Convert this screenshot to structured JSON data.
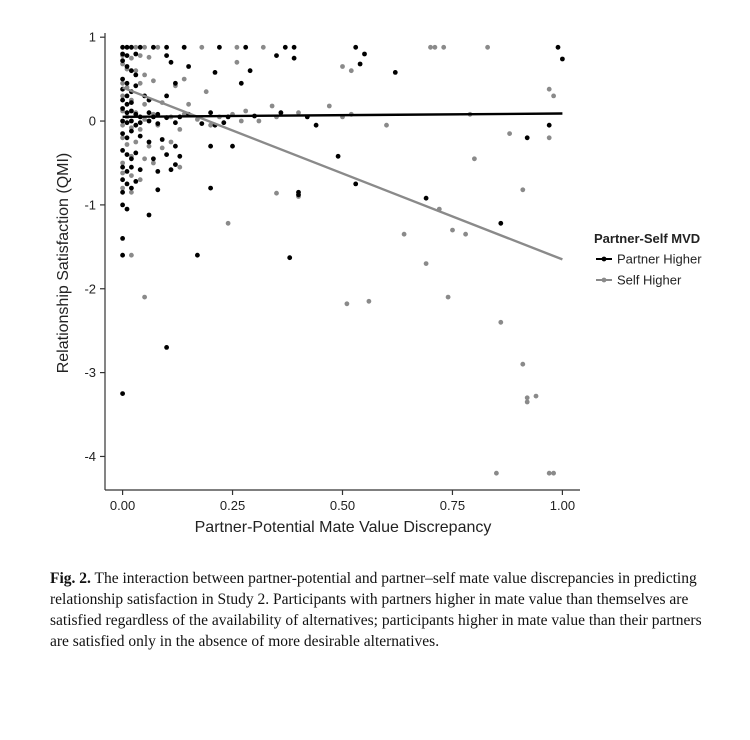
{
  "chart_data": {
    "type": "scatter",
    "xlabel": "Partner-Potential Mate Value Discrepancy",
    "ylabel": "Relationship Satisfaction (QMI)",
    "xlim": [
      -0.04,
      1.04
    ],
    "ylim": [
      -4.4,
      1.05
    ],
    "x_ticks": [
      {
        "value": 0.0,
        "label": "0.00"
      },
      {
        "value": 0.25,
        "label": "0.25"
      },
      {
        "value": 0.5,
        "label": "0.50"
      },
      {
        "value": 0.75,
        "label": "0.75"
      },
      {
        "value": 1.0,
        "label": "1.00"
      }
    ],
    "y_ticks": [
      {
        "value": 1,
        "label": "1"
      },
      {
        "value": 0,
        "label": "0"
      },
      {
        "value": -1,
        "label": "-1"
      },
      {
        "value": -2,
        "label": "-2"
      },
      {
        "value": -3,
        "label": "-3"
      },
      {
        "value": -4,
        "label": "-4"
      }
    ],
    "grid": false,
    "legend": {
      "title": "Partner-Self MVD",
      "placement": "right"
    },
    "series": [
      {
        "name": "Partner Higher",
        "color": "#000000",
        "fit_line": [
          [
            0,
            0.05
          ],
          [
            1,
            0.09
          ]
        ],
        "points": [
          [
            0.0,
            0.88
          ],
          [
            0.01,
            0.88
          ],
          [
            0.02,
            0.88
          ],
          [
            0.04,
            0.88
          ],
          [
            0.07,
            0.88
          ],
          [
            0.1,
            0.88
          ],
          [
            0.14,
            0.88
          ],
          [
            0.22,
            0.88
          ],
          [
            0.28,
            0.88
          ],
          [
            0.37,
            0.88
          ],
          [
            0.39,
            0.88
          ],
          [
            0.53,
            0.88
          ],
          [
            0.99,
            0.88
          ],
          [
            0.0,
            0.8
          ],
          [
            0.01,
            0.78
          ],
          [
            0.03,
            0.8
          ],
          [
            0.1,
            0.78
          ],
          [
            0.55,
            0.8
          ],
          [
            1.0,
            0.74
          ],
          [
            0.54,
            0.68
          ],
          [
            0.0,
            0.72
          ],
          [
            0.01,
            0.65
          ],
          [
            0.02,
            0.6
          ],
          [
            0.03,
            0.55
          ],
          [
            0.11,
            0.7
          ],
          [
            0.15,
            0.65
          ],
          [
            0.21,
            0.58
          ],
          [
            0.29,
            0.6
          ],
          [
            0.39,
            0.75
          ],
          [
            0.62,
            0.58
          ],
          [
            0.0,
            0.5
          ],
          [
            0.01,
            0.45
          ],
          [
            0.03,
            0.42
          ],
          [
            0.12,
            0.45
          ],
          [
            0.27,
            0.45
          ],
          [
            0.35,
            0.78
          ],
          [
            0.0,
            0.38
          ],
          [
            0.01,
            0.3
          ],
          [
            0.02,
            0.35
          ],
          [
            0.05,
            0.3
          ],
          [
            0.06,
            0.25
          ],
          [
            0.1,
            0.3
          ],
          [
            0.0,
            0.25
          ],
          [
            0.01,
            0.2
          ],
          [
            0.02,
            0.22
          ],
          [
            0.0,
            0.15
          ],
          [
            0.01,
            0.1
          ],
          [
            0.02,
            0.12
          ],
          [
            0.03,
            0.08
          ],
          [
            0.04,
            0.05
          ],
          [
            0.06,
            0.1
          ],
          [
            0.07,
            0.05
          ],
          [
            0.08,
            0.08
          ],
          [
            0.1,
            0.04
          ],
          [
            0.13,
            0.05
          ],
          [
            0.15,
            0.08
          ],
          [
            0.2,
            0.1
          ],
          [
            0.24,
            0.05
          ],
          [
            0.3,
            0.06
          ],
          [
            0.36,
            0.1
          ],
          [
            0.42,
            0.05
          ],
          [
            0.0,
            0.0
          ],
          [
            0.01,
            -0.02
          ],
          [
            0.02,
            0.0
          ],
          [
            0.03,
            -0.05
          ],
          [
            0.04,
            -0.02
          ],
          [
            0.06,
            0.0
          ],
          [
            0.08,
            -0.03
          ],
          [
            0.12,
            -0.02
          ],
          [
            0.18,
            -0.03
          ],
          [
            0.21,
            -0.05
          ],
          [
            0.23,
            -0.02
          ],
          [
            0.44,
            -0.05
          ],
          [
            0.97,
            -0.05
          ],
          [
            0.0,
            -0.15
          ],
          [
            0.01,
            -0.2
          ],
          [
            0.02,
            -0.12
          ],
          [
            0.04,
            -0.18
          ],
          [
            0.06,
            -0.25
          ],
          [
            0.09,
            -0.22
          ],
          [
            0.12,
            -0.3
          ],
          [
            0.2,
            -0.3
          ],
          [
            0.25,
            -0.3
          ],
          [
            0.92,
            -0.2
          ],
          [
            0.0,
            -0.35
          ],
          [
            0.01,
            -0.4
          ],
          [
            0.02,
            -0.45
          ],
          [
            0.03,
            -0.38
          ],
          [
            0.07,
            -0.45
          ],
          [
            0.1,
            -0.4
          ],
          [
            0.13,
            -0.42
          ],
          [
            0.49,
            -0.42
          ],
          [
            0.0,
            -0.55
          ],
          [
            0.01,
            -0.6
          ],
          [
            0.02,
            -0.55
          ],
          [
            0.04,
            -0.58
          ],
          [
            0.08,
            -0.6
          ],
          [
            0.11,
            -0.58
          ],
          [
            0.12,
            -0.52
          ],
          [
            0.0,
            -0.7
          ],
          [
            0.01,
            -0.75
          ],
          [
            0.03,
            -0.72
          ],
          [
            0.0,
            -0.85
          ],
          [
            0.02,
            -0.8
          ],
          [
            0.08,
            -0.82
          ],
          [
            0.2,
            -0.8
          ],
          [
            0.53,
            -0.75
          ],
          [
            0.0,
            -1.0
          ],
          [
            0.01,
            -1.05
          ],
          [
            0.06,
            -1.12
          ],
          [
            0.4,
            -0.85
          ],
          [
            0.4,
            -0.88
          ],
          [
            0.69,
            -0.92
          ],
          [
            0.86,
            -1.22
          ],
          [
            0.0,
            -1.4
          ],
          [
            0.0,
            -1.6
          ],
          [
            0.17,
            -1.6
          ],
          [
            0.38,
            -1.63
          ],
          [
            0.1,
            -2.7
          ],
          [
            0.0,
            -3.25
          ]
        ]
      },
      {
        "name": "Self Higher",
        "color": "#8a8a8a",
        "fit_line": [
          [
            0,
            0.4
          ],
          [
            1,
            -1.65
          ]
        ],
        "points": [
          [
            0.01,
            0.88
          ],
          [
            0.02,
            0.88
          ],
          [
            0.03,
            0.88
          ],
          [
            0.05,
            0.88
          ],
          [
            0.08,
            0.88
          ],
          [
            0.14,
            0.88
          ],
          [
            0.18,
            0.88
          ],
          [
            0.26,
            0.88
          ],
          [
            0.32,
            0.88
          ],
          [
            0.7,
            0.88
          ],
          [
            0.71,
            0.88
          ],
          [
            0.73,
            0.88
          ],
          [
            0.83,
            0.88
          ],
          [
            0.0,
            0.78
          ],
          [
            0.02,
            0.75
          ],
          [
            0.04,
            0.78
          ],
          [
            0.06,
            0.76
          ],
          [
            0.0,
            0.68
          ],
          [
            0.01,
            0.62
          ],
          [
            0.03,
            0.6
          ],
          [
            0.05,
            0.55
          ],
          [
            0.14,
            0.5
          ],
          [
            0.26,
            0.7
          ],
          [
            0.5,
            0.65
          ],
          [
            0.52,
            0.6
          ],
          [
            0.0,
            0.45
          ],
          [
            0.01,
            0.4
          ],
          [
            0.04,
            0.45
          ],
          [
            0.07,
            0.48
          ],
          [
            0.12,
            0.42
          ],
          [
            0.19,
            0.35
          ],
          [
            0.97,
            0.38
          ],
          [
            0.98,
            0.3
          ],
          [
            0.0,
            0.3
          ],
          [
            0.02,
            0.25
          ],
          [
            0.05,
            0.2
          ],
          [
            0.09,
            0.22
          ],
          [
            0.15,
            0.2
          ],
          [
            0.28,
            0.12
          ],
          [
            0.34,
            0.18
          ],
          [
            0.47,
            0.18
          ],
          [
            0.4,
            0.1
          ],
          [
            0.0,
            0.12
          ],
          [
            0.01,
            0.05
          ],
          [
            0.03,
            0.1
          ],
          [
            0.05,
            0.02
          ],
          [
            0.07,
            0.08
          ],
          [
            0.11,
            0.05
          ],
          [
            0.14,
            0.08
          ],
          [
            0.17,
            0.02
          ],
          [
            0.22,
            0.05
          ],
          [
            0.25,
            0.08
          ],
          [
            0.31,
            0.0
          ],
          [
            0.35,
            0.05
          ],
          [
            0.5,
            0.05
          ],
          [
            0.52,
            0.08
          ],
          [
            0.79,
            0.08
          ],
          [
            0.0,
            -0.05
          ],
          [
            0.02,
            -0.08
          ],
          [
            0.04,
            -0.1
          ],
          [
            0.08,
            -0.05
          ],
          [
            0.13,
            -0.1
          ],
          [
            0.2,
            -0.05
          ],
          [
            0.27,
            0.0
          ],
          [
            0.6,
            -0.05
          ],
          [
            0.88,
            -0.15
          ],
          [
            0.97,
            -0.2
          ],
          [
            0.0,
            -0.2
          ],
          [
            0.01,
            -0.28
          ],
          [
            0.03,
            -0.25
          ],
          [
            0.06,
            -0.3
          ],
          [
            0.09,
            -0.32
          ],
          [
            0.11,
            -0.25
          ],
          [
            0.02,
            -0.42
          ],
          [
            0.05,
            -0.45
          ],
          [
            0.07,
            -0.5
          ],
          [
            0.13,
            -0.55
          ],
          [
            0.0,
            -0.5
          ],
          [
            0.0,
            -0.62
          ],
          [
            0.02,
            -0.65
          ],
          [
            0.04,
            -0.7
          ],
          [
            0.0,
            -0.8
          ],
          [
            0.02,
            -0.85
          ],
          [
            0.8,
            -0.45
          ],
          [
            0.91,
            -0.82
          ],
          [
            0.35,
            -0.86
          ],
          [
            0.4,
            -0.9
          ],
          [
            0.72,
            -1.05
          ],
          [
            0.75,
            -1.3
          ],
          [
            0.78,
            -1.35
          ],
          [
            0.24,
            -1.22
          ],
          [
            0.64,
            -1.35
          ],
          [
            0.69,
            -1.7
          ],
          [
            0.02,
            -1.6
          ],
          [
            0.05,
            -2.1
          ],
          [
            0.51,
            -2.18
          ],
          [
            0.56,
            -2.15
          ],
          [
            0.74,
            -2.1
          ],
          [
            0.86,
            -2.4
          ],
          [
            0.91,
            -2.9
          ],
          [
            0.92,
            -3.3
          ],
          [
            0.92,
            -3.35
          ],
          [
            0.94,
            -3.28
          ],
          [
            0.85,
            -4.2
          ],
          [
            0.97,
            -4.2
          ],
          [
            0.98,
            -4.2
          ]
        ]
      }
    ]
  },
  "caption": {
    "label": "Fig. 2.",
    "text": " The interaction between partner-potential and partner–self mate value discrepancies in predicting relationship satisfaction in Study 2. Participants with partners higher in mate value than themselves are satisfied regardless of the availability of alternatives; participants higher in mate value than their partners are satisfied only in the absence of more desirable alternatives."
  }
}
